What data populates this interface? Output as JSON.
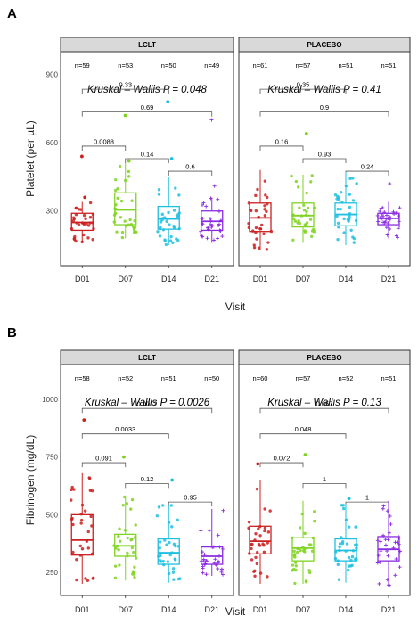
{
  "panel_a_label": "A",
  "panel_b_label": "B",
  "chart_data": [
    {
      "type": "box",
      "panel": "A",
      "ylabel": "Platelet (per µL)",
      "xlabel": "Visit",
      "ylim": [
        60,
        1000
      ],
      "yticks": [
        300,
        600,
        900
      ],
      "facets": [
        {
          "title": "LCLT",
          "kruskal": "Kruskal – Wallis P = 0.048",
          "groups": [
            {
              "visit": "D01",
              "n": "n=59",
              "q1": 215,
              "median": 250,
              "q3": 290,
              "wlo": 160,
              "whi": 340,
              "color": "#cc1f1f",
              "outliers": [
                540,
                360
              ]
            },
            {
              "visit": "D07",
              "n": "n=53",
              "q1": 240,
              "median": 305,
              "q3": 380,
              "wlo": 180,
              "whi": 510,
              "color": "#7fd321",
              "outliers": [
                720,
                520
              ]
            },
            {
              "visit": "D14",
              "n": "n=50",
              "q1": 220,
              "median": 265,
              "q3": 320,
              "wlo": 150,
              "whi": 450,
              "color": "#1fbfe0",
              "outliers": [
                780,
                530
              ]
            },
            {
              "visit": "D21",
              "n": "n=49",
              "q1": 215,
              "median": 255,
              "q3": 300,
              "wlo": 160,
              "whi": 360,
              "color": "#8a2be2",
              "outliers": [
                700,
                410
              ]
            }
          ],
          "brackets": [
            {
              "from": 0,
              "to": 2,
              "label": "0.33",
              "y": 835
            },
            {
              "from": 0,
              "to": 3,
              "label": "0.69",
              "y": 735
            },
            {
              "from": 0,
              "to": 1,
              "label": "0.0088",
              "y": 585
            },
            {
              "from": 1,
              "to": 2,
              "label": "0.14",
              "y": 530
            },
            {
              "from": 2,
              "to": 3,
              "label": "0.6",
              "y": 475
            }
          ]
        },
        {
          "title": "PLACEBO",
          "kruskal": "Kruskal – Wallis P = 0.41",
          "groups": [
            {
              "visit": "D01",
              "n": "n=61",
              "q1": 210,
              "median": 270,
              "q3": 335,
              "wlo": 130,
              "whi": 480,
              "color": "#cc1f1f",
              "outliers": []
            },
            {
              "visit": "D07",
              "n": "n=57",
              "q1": 230,
              "median": 280,
              "q3": 335,
              "wlo": 160,
              "whi": 460,
              "color": "#7fd321",
              "outliers": [
                640
              ]
            },
            {
              "visit": "D14",
              "n": "n=51",
              "q1": 235,
              "median": 285,
              "q3": 335,
              "wlo": 150,
              "whi": 470,
              "color": "#1fbfe0",
              "outliers": []
            },
            {
              "visit": "D21",
              "n": "n=51",
              "q1": 240,
              "median": 268,
              "q3": 290,
              "wlo": 180,
              "whi": 340,
              "color": "#8a2be2",
              "outliers": [
                420
              ]
            }
          ],
          "brackets": [
            {
              "from": 0,
              "to": 2,
              "label": "0.35",
              "y": 835
            },
            {
              "from": 0,
              "to": 3,
              "label": "0.9",
              "y": 735
            },
            {
              "from": 0,
              "to": 1,
              "label": "0.16",
              "y": 585
            },
            {
              "from": 1,
              "to": 2,
              "label": "0.93",
              "y": 530
            },
            {
              "from": 2,
              "to": 3,
              "label": "0.24",
              "y": 475
            }
          ]
        }
      ]
    },
    {
      "type": "box",
      "panel": "B",
      "ylabel": "Fibrinogen (mg/dL)",
      "xlabel": "Visit",
      "ylim": [
        150,
        1150
      ],
      "yticks": [
        250,
        500,
        750,
        1000
      ],
      "facets": [
        {
          "title": "LCLT",
          "kruskal": "Kruskal – Wallis P = 0.0026",
          "groups": [
            {
              "visit": "D01",
              "n": "n=58",
              "q1": 325,
              "median": 390,
              "q3": 500,
              "wlo": 200,
              "whi": 680,
              "color": "#cc1f1f",
              "outliers": [
                910
              ]
            },
            {
              "visit": "D07",
              "n": "n=52",
              "q1": 320,
              "median": 365,
              "q3": 415,
              "wlo": 215,
              "whi": 580,
              "color": "#7fd321",
              "outliers": [
                750
              ]
            },
            {
              "visit": "D14",
              "n": "n=51",
              "q1": 285,
              "median": 335,
              "q3": 395,
              "wlo": 205,
              "whi": 545,
              "color": "#1fbfe0",
              "outliers": [
                650
              ]
            },
            {
              "visit": "D21",
              "n": "n=50",
              "q1": 285,
              "median": 320,
              "q3": 360,
              "wlo": 235,
              "whi": 525,
              "color": "#8a2be2",
              "outliers": []
            }
          ],
          "brackets": [
            {
              "from": 0,
              "to": 3,
              "label": "0.0012",
              "y": 960
            },
            {
              "from": 0,
              "to": 2,
              "label": "0.0033",
              "y": 850
            },
            {
              "from": 0,
              "to": 1,
              "label": "0.091",
              "y": 725
            },
            {
              "from": 1,
              "to": 2,
              "label": "0.12",
              "y": 635
            },
            {
              "from": 2,
              "to": 3,
              "label": "0.95",
              "y": 555
            }
          ]
        },
        {
          "title": "PLACEBO",
          "kruskal": "Kruskal – Wallis P = 0.13",
          "groups": [
            {
              "visit": "D01",
              "n": "n=60",
              "q1": 330,
              "median": 385,
              "q3": 450,
              "wlo": 200,
              "whi": 650,
              "color": "#cc1f1f",
              "outliers": [
                720
              ]
            },
            {
              "visit": "D07",
              "n": "n=57",
              "q1": 300,
              "median": 355,
              "q3": 400,
              "wlo": 200,
              "whi": 560,
              "color": "#7fd321",
              "outliers": [
                760
              ]
            },
            {
              "visit": "D14",
              "n": "n=52",
              "q1": 300,
              "median": 345,
              "q3": 395,
              "wlo": 205,
              "whi": 545,
              "color": "#1fbfe0",
              "outliers": [
                570
              ]
            },
            {
              "visit": "D21",
              "n": "n=51",
              "q1": 300,
              "median": 350,
              "q3": 405,
              "wlo": 190,
              "whi": 560,
              "color": "#8a2be2",
              "outliers": []
            }
          ],
          "brackets": [
            {
              "from": 0,
              "to": 3,
              "label": "0.057",
              "y": 960
            },
            {
              "from": 0,
              "to": 2,
              "label": "0.048",
              "y": 850
            },
            {
              "from": 0,
              "to": 1,
              "label": "0.072",
              "y": 725
            },
            {
              "from": 1,
              "to": 2,
              "label": "1",
              "y": 635
            },
            {
              "from": 2,
              "to": 3,
              "label": "1",
              "y": 555
            }
          ]
        }
      ]
    }
  ]
}
